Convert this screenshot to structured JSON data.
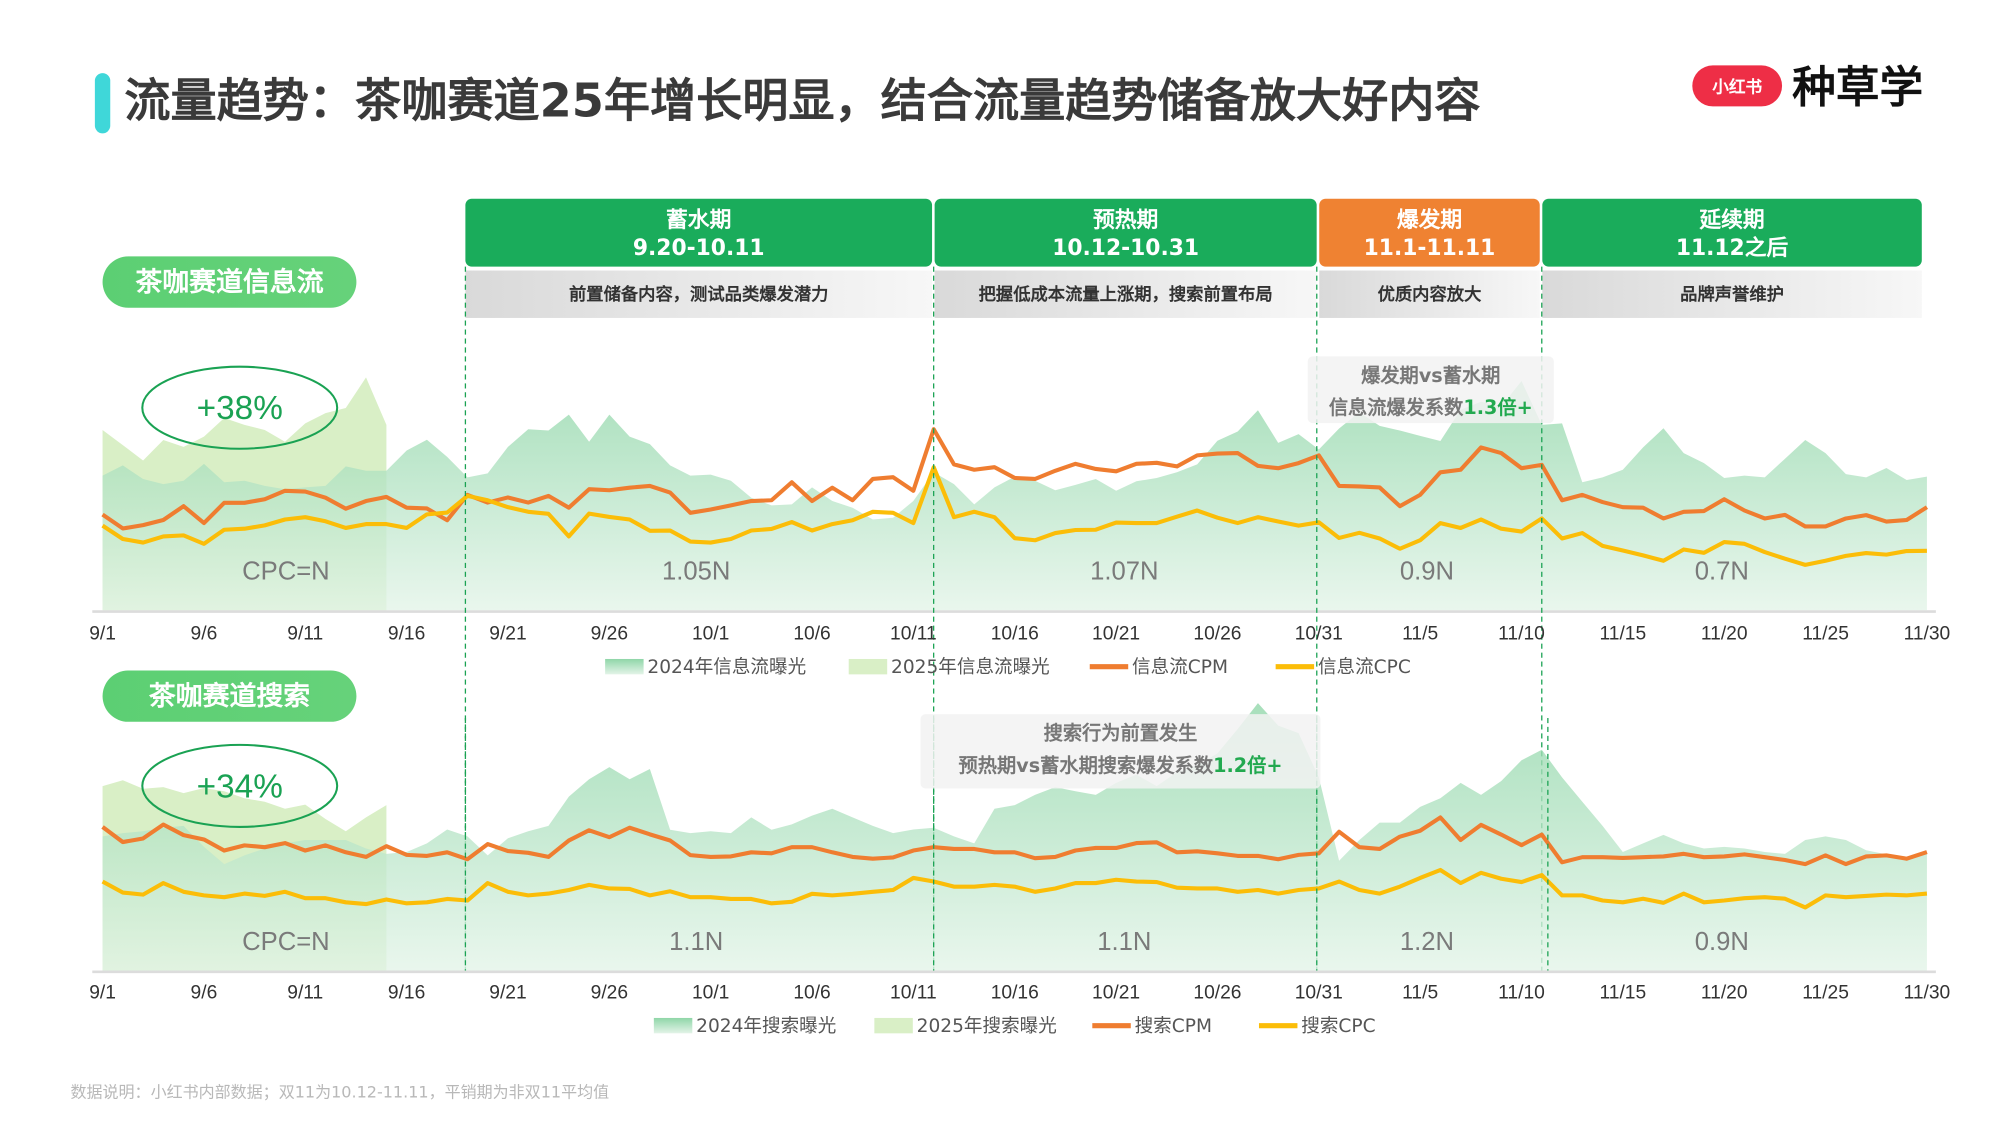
{
  "header": {
    "title": "流量趋势：茶咖赛道25年增长明显，结合流量趋势储备放大好内容",
    "logo_badge": "小红书",
    "logo_text": "种草学"
  },
  "phases": [
    {
      "name": "蓄水期",
      "dates": "9.20-10.11",
      "desc": "前置储备内容，测试品类爆发潜力",
      "color": "#1aac5b"
    },
    {
      "name": "预热期",
      "dates": "10.12-10.31",
      "desc": "把握低成本流量上涨期，搜索前置布局",
      "color": "#1aac5b"
    },
    {
      "name": "爆发期",
      "dates": "11.1-11.11",
      "desc": "优质内容放大",
      "color": "#ef8232"
    },
    {
      "name": "延续期",
      "dates": "11.12之后",
      "desc": "品牌声誉维护",
      "color": "#1aac5b"
    }
  ],
  "colors": {
    "exposure_2024": "#8fd6a8",
    "exposure_2025": "#d9efc6",
    "cpm": "#ef7d30",
    "cpc": "#fbbd08",
    "pill": "#5ccf73",
    "accent_bar": "#3fd7d9",
    "logo_red": "#ee2e46"
  },
  "footnote": "数据说明：小红书内部数据；双11为10.12-11.11，平销期为非双11平均值",
  "chart_data": [
    {
      "type": "area+line",
      "section_label": "茶咖赛道信息流",
      "growth_label": "+38%",
      "period_labels": [
        "CPC=N",
        "1.05N",
        "1.07N",
        "0.9N",
        "0.7N"
      ],
      "callout": {
        "line1": "爆发期vs蓄水期",
        "line2": "信息流爆发系数",
        "highlight": "1.3倍+"
      },
      "x_ticks": [
        "9/1",
        "9/6",
        "9/11",
        "9/16",
        "9/21",
        "9/26",
        "10/1",
        "10/6",
        "10/11",
        "10/16",
        "10/21",
        "10/26",
        "10/31",
        "11/5",
        "11/10",
        "11/15",
        "11/20",
        "11/25",
        "11/30"
      ],
      "x_range": [
        "9/1",
        "11/30"
      ],
      "ylim": [
        0,
        110
      ],
      "grid": false,
      "legend_position": "bottom",
      "series": [
        {
          "name": "2024年信息流曝光",
          "kind": "area",
          "start": "9/1",
          "values": [
            52.5,
            56.5,
            51.2,
            49.2,
            50.5,
            57.1,
            49.9,
            50.5,
            48.5,
            47.2,
            47.9,
            48.5,
            56.1,
            54.4,
            54.4,
            62.3,
            66.5,
            59.8,
            51.8,
            53.4,
            63.7,
            70.6,
            70.1,
            76.3,
            65.7,
            76.3,
            67.7,
            64.8,
            56.5,
            52.5,
            52.9,
            50.5,
            43.9,
            40.9,
            41.3,
            47.9,
            42.6,
            40.0,
            35.4,
            36.1,
            42.6,
            53.8,
            49.2,
            41.3,
            47.9,
            52.1,
            50.5,
            46.8,
            48.9,
            51.2,
            46.6,
            50.3,
            51.6,
            53.8,
            56.9,
            66.1,
            69.7,
            78.0,
            65.3,
            68.7,
            62.7,
            70.9,
            77.2,
            71.9,
            70.1,
            68.0,
            66.0,
            78.2,
            81.3,
            79.5,
            89.4,
            72.3,
            72.9,
            49.9,
            51.8,
            54.8,
            63.5,
            71.0,
            61.3,
            57.4,
            51.6,
            52.5,
            51.8,
            59.1,
            66.4,
            61.3,
            53.1,
            51.8,
            55.5,
            50.8,
            52.1
          ]
        },
        {
          "name": "2025年信息流曝光",
          "kind": "area",
          "start": "9/1",
          "values": [
            70.3,
            64.4,
            58.4,
            66.4,
            63.7,
            67.7,
            75.0,
            72.3,
            70.3,
            65.7,
            72.9,
            76.9,
            78.9,
            90.8,
            72.3
          ]
        },
        {
          "name": "信息流CPM",
          "kind": "line",
          "start": "9/1",
          "values": [
            37.3,
            31.9,
            33.2,
            35.2,
            40.6,
            34.0,
            41.9,
            41.9,
            43.3,
            46.6,
            46.3,
            43.9,
            39.6,
            42.6,
            44.2,
            40.0,
            39.7,
            35.1,
            45.0,
            42.0,
            44.0,
            42.0,
            44.6,
            40.0,
            47.2,
            46.8,
            47.8,
            48.5,
            45.9,
            38.0,
            39.3,
            40.9,
            42.6,
            42.9,
            49.9,
            42.6,
            47.8,
            42.9,
            51.2,
            51.9,
            46.6,
            70.6,
            56.9,
            54.8,
            55.8,
            51.6,
            51.2,
            54.4,
            57.1,
            55.1,
            54.2,
            57.1,
            57.5,
            56.1,
            60.4,
            61.1,
            61.3,
            56.3,
            55.4,
            57.4,
            60.4,
            48.5,
            48.3,
            47.9,
            40.6,
            45.0,
            53.8,
            54.8,
            63.5,
            61.3,
            55.4,
            56.7,
            42.9,
            45.0,
            42.2,
            40.2,
            40.0,
            35.8,
            38.4,
            38.7,
            43.3,
            38.9,
            35.8,
            37.2,
            32.7,
            32.7,
            35.8,
            37.1,
            34.6,
            35.2,
            40.2
          ]
        },
        {
          "name": "信息流CPC",
          "kind": "line",
          "start": "9/1",
          "values": [
            33.0,
            27.8,
            26.4,
            28.8,
            29.2,
            25.9,
            31.4,
            31.8,
            33.1,
            35.4,
            36.3,
            34.7,
            32.1,
            33.6,
            33.6,
            32.1,
            37.4,
            38.1,
            44.6,
            42.9,
            40.2,
            38.4,
            37.6,
            28.8,
            37.7,
            36.4,
            35.4,
            31.0,
            31.1,
            26.8,
            26.4,
            27.8,
            31.1,
            31.7,
            34.4,
            31.1,
            33.6,
            35.1,
            38.4,
            38.0,
            34.0,
            55.8,
            36.3,
            38.4,
            36.3,
            28.1,
            27.3,
            30.1,
            31.3,
            31.4,
            34.2,
            34.0,
            34.0,
            36.5,
            38.9,
            36.1,
            34.0,
            36.3,
            34.6,
            33.0,
            34.3,
            28.2,
            30.2,
            28.0,
            24.0,
            27.3,
            34.0,
            32.1,
            35.4,
            31.8,
            30.7,
            35.8,
            28.0,
            30.1,
            25.1,
            23.3,
            21.4,
            19.3,
            23.7,
            22.4,
            26.6,
            25.9,
            22.7,
            20.1,
            17.7,
            19.3,
            21.2,
            22.3,
            21.7,
            23.1,
            23.2
          ]
        }
      ]
    },
    {
      "type": "area+line",
      "section_label": "茶咖赛道搜索",
      "growth_label": "+34%",
      "period_labels": [
        "CPC=N",
        "1.1N",
        "1.1N",
        "1.2N",
        "0.9N"
      ],
      "callout": {
        "line1": "搜索行为前置发生",
        "line2": "预热期vs蓄水期搜索爆发系数",
        "highlight": "1.2倍+"
      },
      "x_ticks": [
        "9/1",
        "9/6",
        "9/11",
        "9/16",
        "9/21",
        "9/26",
        "10/1",
        "10/6",
        "10/11",
        "10/16",
        "10/21",
        "10/26",
        "10/31",
        "11/5",
        "11/10",
        "11/15",
        "11/20",
        "11/25",
        "11/30"
      ],
      "x_range": [
        "9/1",
        "11/30"
      ],
      "ylim": [
        0,
        110
      ],
      "grid": false,
      "legend_position": "bottom",
      "series": [
        {
          "name": "2024年搜索曝光",
          "kind": "area",
          "start": "9/1",
          "values": [
            52.3,
            53.6,
            54.3,
            55.7,
            56.4,
            48.2,
            41.5,
            44.9,
            47.6,
            49.6,
            50.9,
            50.9,
            50.9,
            47.6,
            45.5,
            46.2,
            49.6,
            55.0,
            52.3,
            44.9,
            51.6,
            54.3,
            56.4,
            67.8,
            74.6,
            79.3,
            74.6,
            78.6,
            54.9,
            53.6,
            54.3,
            53.6,
            59.7,
            54.9,
            57.0,
            60.4,
            63.1,
            59.7,
            56.4,
            53.6,
            55.0,
            55.7,
            52.3,
            49.6,
            63.1,
            64.5,
            68.5,
            71.5,
            69.9,
            68.5,
            73.2,
            76.4,
            71.9,
            77.3,
            80.0,
            84.7,
            94.2,
            104.3,
            95.5,
            92.6,
            75.3,
            42.8,
            50.9,
            57.7,
            57.7,
            63.8,
            67.2,
            73.2,
            68.5,
            73.9,
            82.0,
            86.1,
            75.3,
            65.8,
            56.4,
            46.2,
            49.6,
            52.9,
            49.6,
            47.6,
            48.2,
            47.6,
            46.2,
            45.5,
            50.9,
            52.3,
            50.9,
            46.9,
            45.3,
            44.2,
            46.2
          ]
        },
        {
          "name": "2025年搜索曝光",
          "kind": "area",
          "start": "9/1",
          "values": [
            71.9,
            74.2,
            70.9,
            71.5,
            69.2,
            71.2,
            69.9,
            67.2,
            65.8,
            63.1,
            64.7,
            59.1,
            54.3,
            59.7,
            64.5
          ]
        },
        {
          "name": "搜索CPM",
          "kind": "line",
          "start": "9/1",
          "values": [
            56.0,
            50.1,
            51.5,
            56.9,
            52.8,
            51.1,
            46.8,
            48.8,
            48.1,
            49.7,
            46.8,
            48.8,
            46.1,
            44.3,
            48.5,
            45.1,
            44.7,
            46.1,
            43.4,
            49.3,
            46.6,
            45.9,
            44.3,
            50.7,
            54.7,
            52.0,
            55.7,
            53.1,
            50.7,
            45.0,
            44.3,
            44.5,
            46.1,
            45.7,
            48.1,
            48.1,
            46.1,
            44.3,
            43.6,
            44.1,
            46.8,
            48.1,
            47.4,
            47.4,
            46.1,
            46.1,
            43.8,
            44.3,
            46.8,
            47.8,
            47.8,
            49.7,
            50.0,
            46.1,
            46.5,
            45.7,
            44.7,
            44.7,
            43.4,
            45.1,
            45.7,
            54.1,
            48.1,
            47.4,
            52.2,
            54.5,
            59.7,
            50.9,
            56.8,
            53.0,
            48.9,
            53.0,
            42.2,
            44.2,
            44.2,
            43.9,
            44.2,
            44.5,
            45.5,
            44.2,
            44.5,
            45.3,
            44.2,
            43.1,
            41.5,
            44.9,
            41.5,
            44.5,
            44.9,
            43.6,
            46.2
          ]
        },
        {
          "name": "搜索CPC",
          "kind": "line",
          "start": "9/1",
          "values": [
            34.7,
            30.4,
            29.6,
            34.1,
            30.7,
            29.3,
            28.6,
            30.0,
            29.1,
            30.7,
            28.2,
            28.2,
            26.6,
            25.9,
            27.7,
            26.2,
            26.6,
            27.9,
            27.3,
            34.1,
            30.7,
            29.3,
            30.0,
            31.4,
            33.4,
            32.0,
            31.8,
            29.3,
            30.9,
            28.6,
            28.6,
            27.9,
            27.9,
            26.2,
            26.8,
            29.9,
            29.3,
            29.9,
            30.7,
            31.4,
            36.1,
            34.7,
            32.7,
            32.7,
            33.4,
            32.7,
            30.7,
            32.0,
            34.1,
            34.1,
            35.4,
            34.7,
            34.5,
            32.3,
            32.0,
            32.0,
            30.7,
            31.4,
            30.0,
            31.4,
            32.0,
            34.7,
            31.4,
            30.0,
            32.7,
            36.1,
            39.2,
            34.1,
            38.1,
            35.8,
            34.5,
            37.2,
            29.3,
            29.3,
            27.3,
            26.6,
            28.0,
            26.4,
            30.0,
            26.6,
            27.3,
            28.2,
            28.6,
            28.0,
            24.6,
            29.3,
            28.6,
            29.1,
            29.6,
            29.3,
            30.0
          ]
        }
      ]
    }
  ]
}
